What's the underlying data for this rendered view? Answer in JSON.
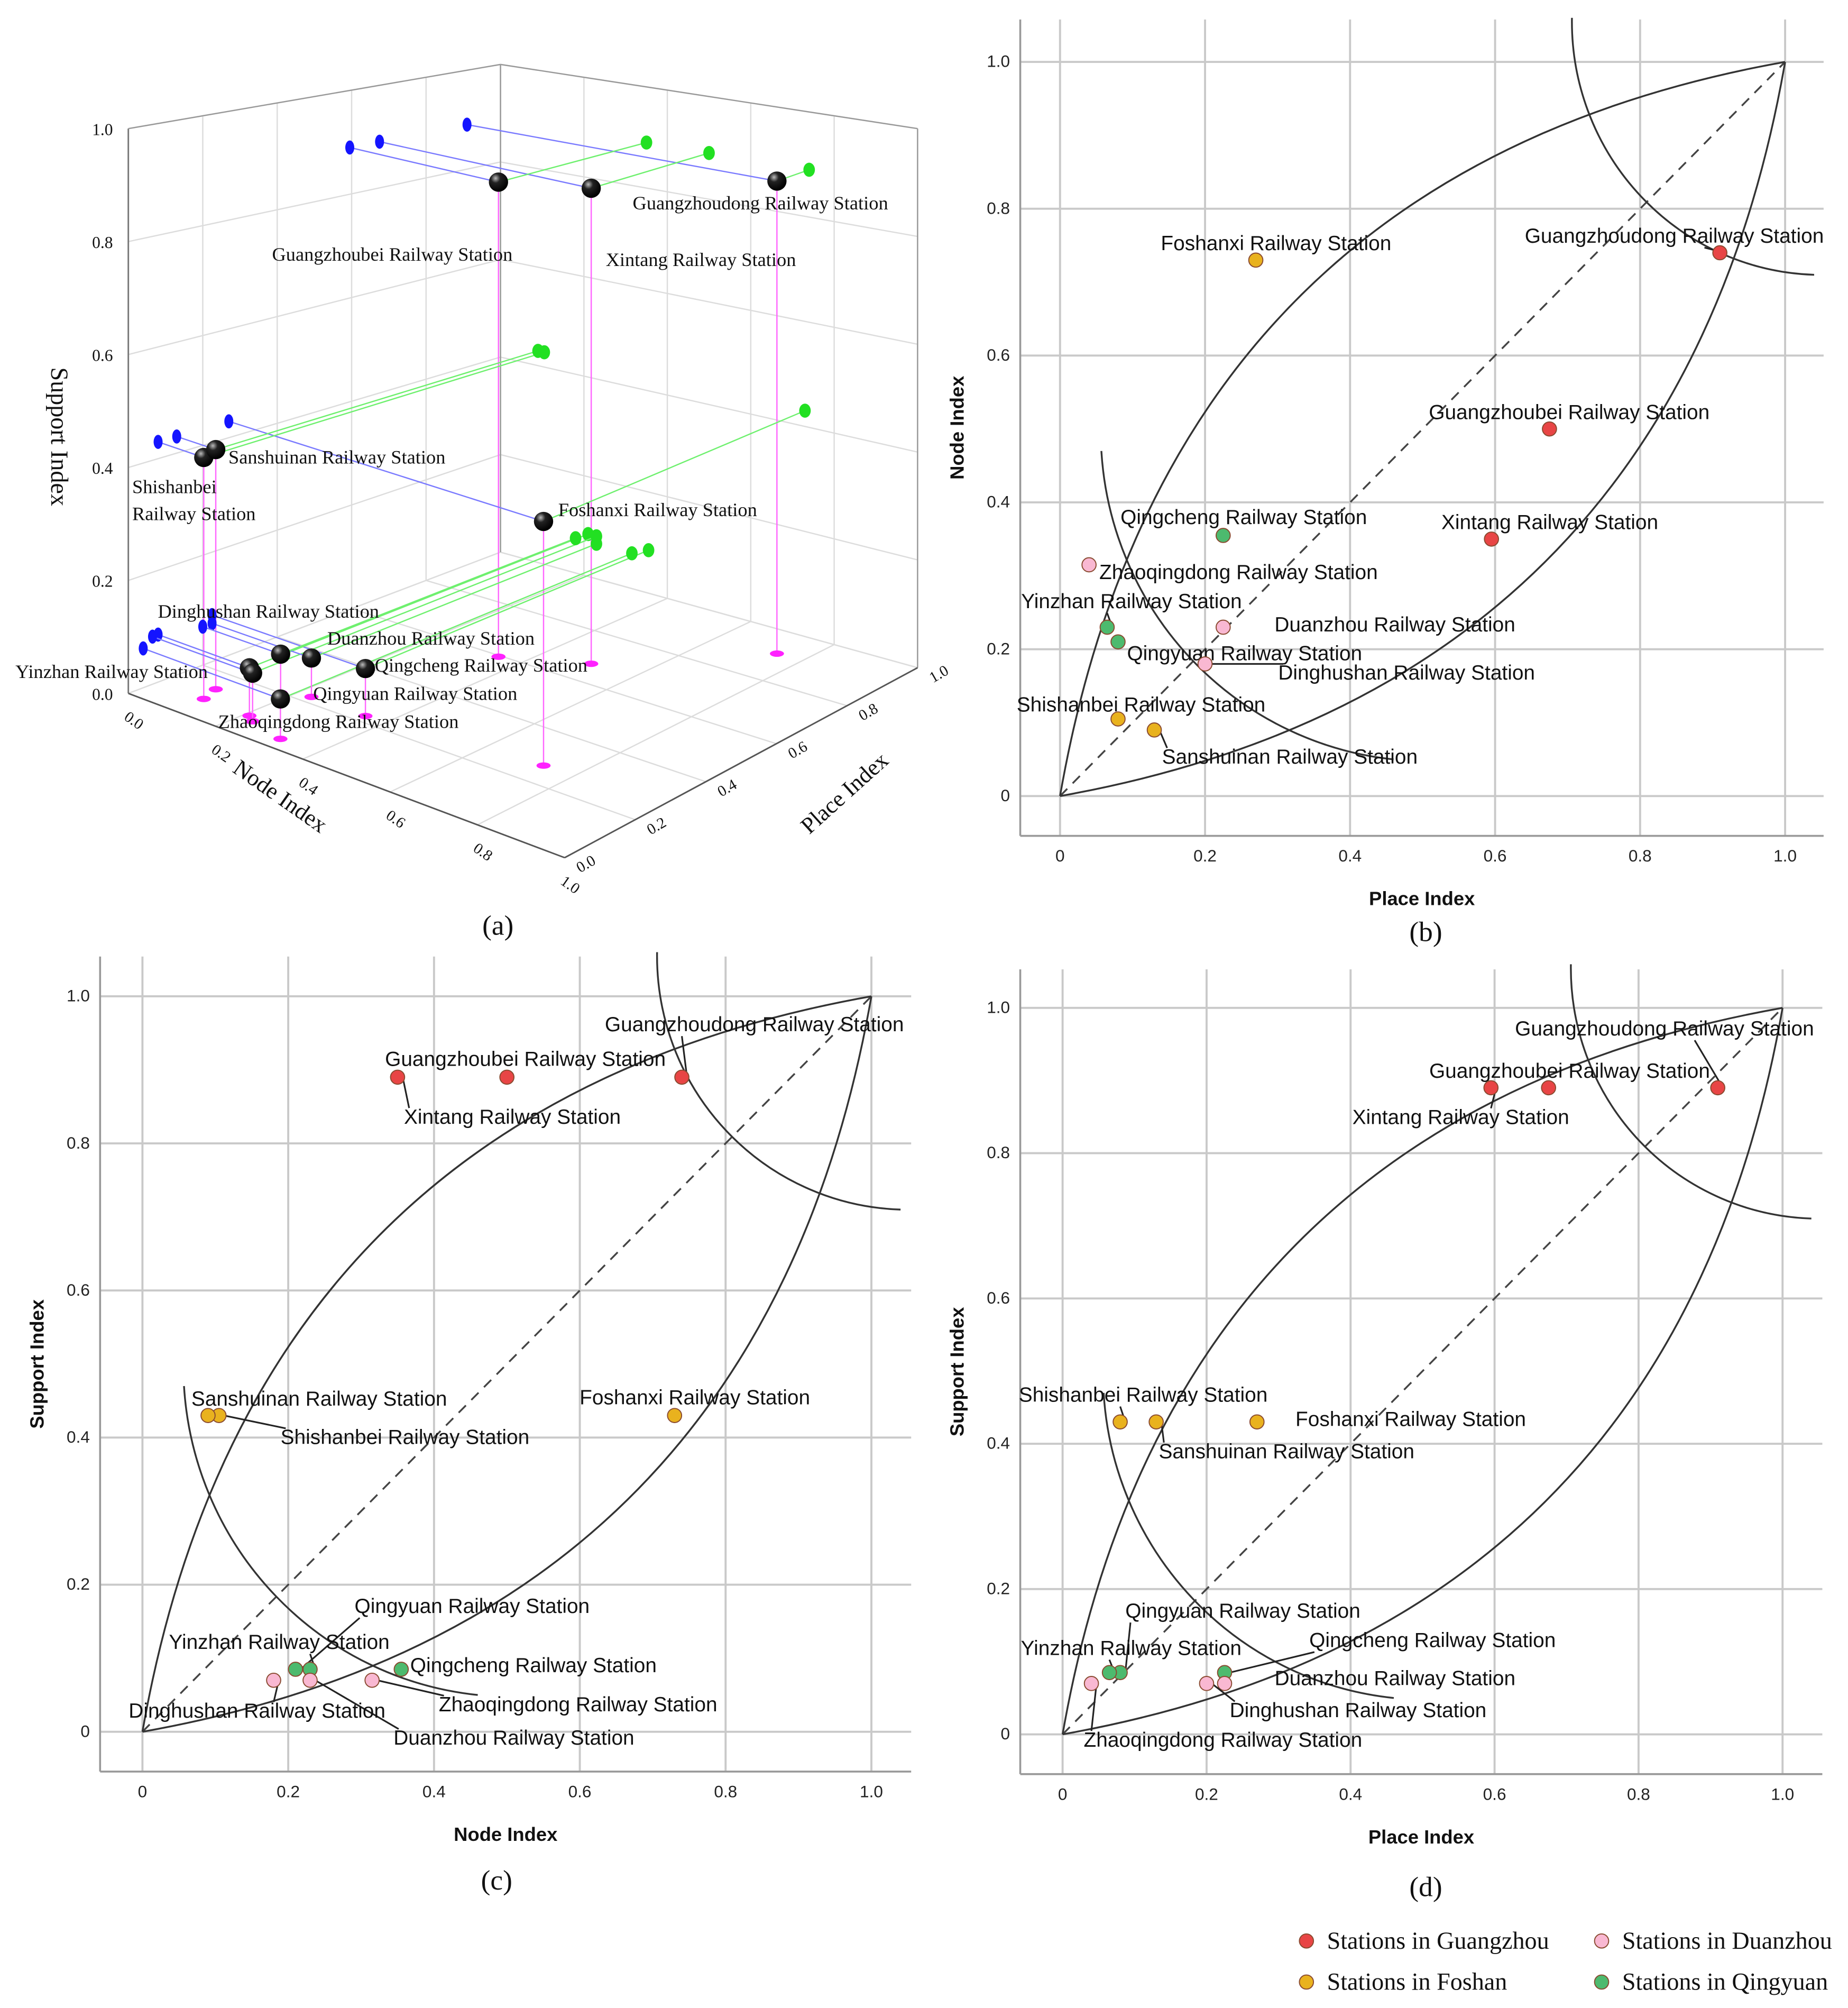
{
  "captions": {
    "a": "(a)",
    "b": "(b)",
    "c": "(c)",
    "d": "(d)"
  },
  "colors": {
    "Guangzhou": "#e84545",
    "Foshan": "#e9b21e",
    "Duanzhou": "#f9b8d2",
    "Qingyuan": "#4dba6e",
    "proj_place": "#1414ff",
    "proj_node": "#22e022",
    "proj_floor": "#ff22ff"
  },
  "legend": [
    {
      "city": "Guangzhou",
      "label": "Stations in Guangzhou"
    },
    {
      "city": "Duanzhou",
      "label": "Stations in Duanzhou"
    },
    {
      "city": "Foshan",
      "label": "Stations in Foshan"
    },
    {
      "city": "Qingyuan",
      "label": "Stations in Qingyuan"
    }
  ],
  "stations": [
    {
      "name": "Guangzhoudong Railway Station",
      "city": "Guangzhou",
      "place": 0.91,
      "node": 0.74,
      "support": 0.89
    },
    {
      "name": "Guangzhoubei Railway Station",
      "city": "Guangzhou",
      "place": 0.675,
      "node": 0.5,
      "support": 0.89
    },
    {
      "name": "Xintang Railway Station",
      "city": "Guangzhou",
      "place": 0.595,
      "node": 0.35,
      "support": 0.89
    },
    {
      "name": "Foshanxi Railway Station",
      "city": "Foshan",
      "place": 0.27,
      "node": 0.73,
      "support": 0.43
    },
    {
      "name": "Shishanbei Railway Station",
      "city": "Foshan",
      "place": 0.08,
      "node": 0.105,
      "support": 0.43
    },
    {
      "name": "Sanshuinan Railway Station",
      "city": "Foshan",
      "place": 0.13,
      "node": 0.09,
      "support": 0.43
    },
    {
      "name": "Qingcheng Railway Station",
      "city": "Qingyuan",
      "place": 0.225,
      "node": 0.355,
      "support": 0.085
    },
    {
      "name": "Qingyuan Railway Station",
      "city": "Qingyuan",
      "place": 0.08,
      "node": 0.21,
      "support": 0.085
    },
    {
      "name": "Yinzhan Railway Station",
      "city": "Qingyuan",
      "place": 0.065,
      "node": 0.23,
      "support": 0.085
    },
    {
      "name": "Zhaoqingdong Railway Station",
      "city": "Duanzhou",
      "place": 0.04,
      "node": 0.315,
      "support": 0.07
    },
    {
      "name": "Duanzhou Railway Station",
      "city": "Duanzhou",
      "place": 0.225,
      "node": 0.23,
      "support": 0.07
    },
    {
      "name": "Dinghushan Railway Station",
      "city": "Duanzhou",
      "place": 0.2,
      "node": 0.18,
      "support": 0.07
    }
  ],
  "chart_data": [
    {
      "type": "scatter3d",
      "panel": "a",
      "x_field": "place",
      "y_field": "node",
      "z_field": "support",
      "xlabel": "Place Index",
      "ylabel": "Node Index",
      "zlabel": "Support Index",
      "xticks": [
        "0.0",
        "0.2",
        "0.4",
        "0.6",
        "0.8",
        "1.0"
      ],
      "yticks": [
        "0.0",
        "0.2",
        "0.4",
        "0.6",
        "0.8",
        "1.0"
      ],
      "zticks": [
        "0.0",
        "0.2",
        "0.4",
        "0.6",
        "0.8",
        "1.0"
      ],
      "xlim": [
        0,
        1
      ],
      "ylim": [
        0,
        1
      ],
      "zlim": [
        0,
        1
      ],
      "grid": true
    },
    {
      "type": "scatter",
      "panel": "b",
      "x_field": "place",
      "y_field": "node",
      "xlabel": "Place Index",
      "ylabel": "Node Index",
      "xticks": [
        "0",
        "0.2",
        "0.4",
        "0.6",
        "0.8",
        "1.0"
      ],
      "yticks": [
        "0",
        "0.2",
        "0.4",
        "0.6",
        "0.8",
        "1.0"
      ],
      "xlim": [
        0,
        1
      ],
      "ylim": [
        0,
        1
      ],
      "grid": true
    },
    {
      "type": "scatter",
      "panel": "c",
      "x_field": "node",
      "y_field": "support",
      "xlabel": "Node Index",
      "ylabel": "Support Index",
      "xticks": [
        "0",
        "0.2",
        "0.4",
        "0.6",
        "0.8",
        "1.0"
      ],
      "yticks": [
        "0",
        "0.2",
        "0.4",
        "0.6",
        "0.8",
        "1.0"
      ],
      "xlim": [
        0,
        1
      ],
      "ylim": [
        0,
        1
      ],
      "grid": true
    },
    {
      "type": "scatter",
      "panel": "d",
      "x_field": "place",
      "y_field": "support",
      "xlabel": "Place Index",
      "ylabel": "Support Index",
      "xticks": [
        "0",
        "0.2",
        "0.4",
        "0.6",
        "0.8",
        "1.0"
      ],
      "yticks": [
        "0",
        "0.2",
        "0.4",
        "0.6",
        "0.8",
        "1.0"
      ],
      "xlim": [
        0,
        1
      ],
      "ylim": [
        0,
        1
      ],
      "grid": true
    }
  ]
}
